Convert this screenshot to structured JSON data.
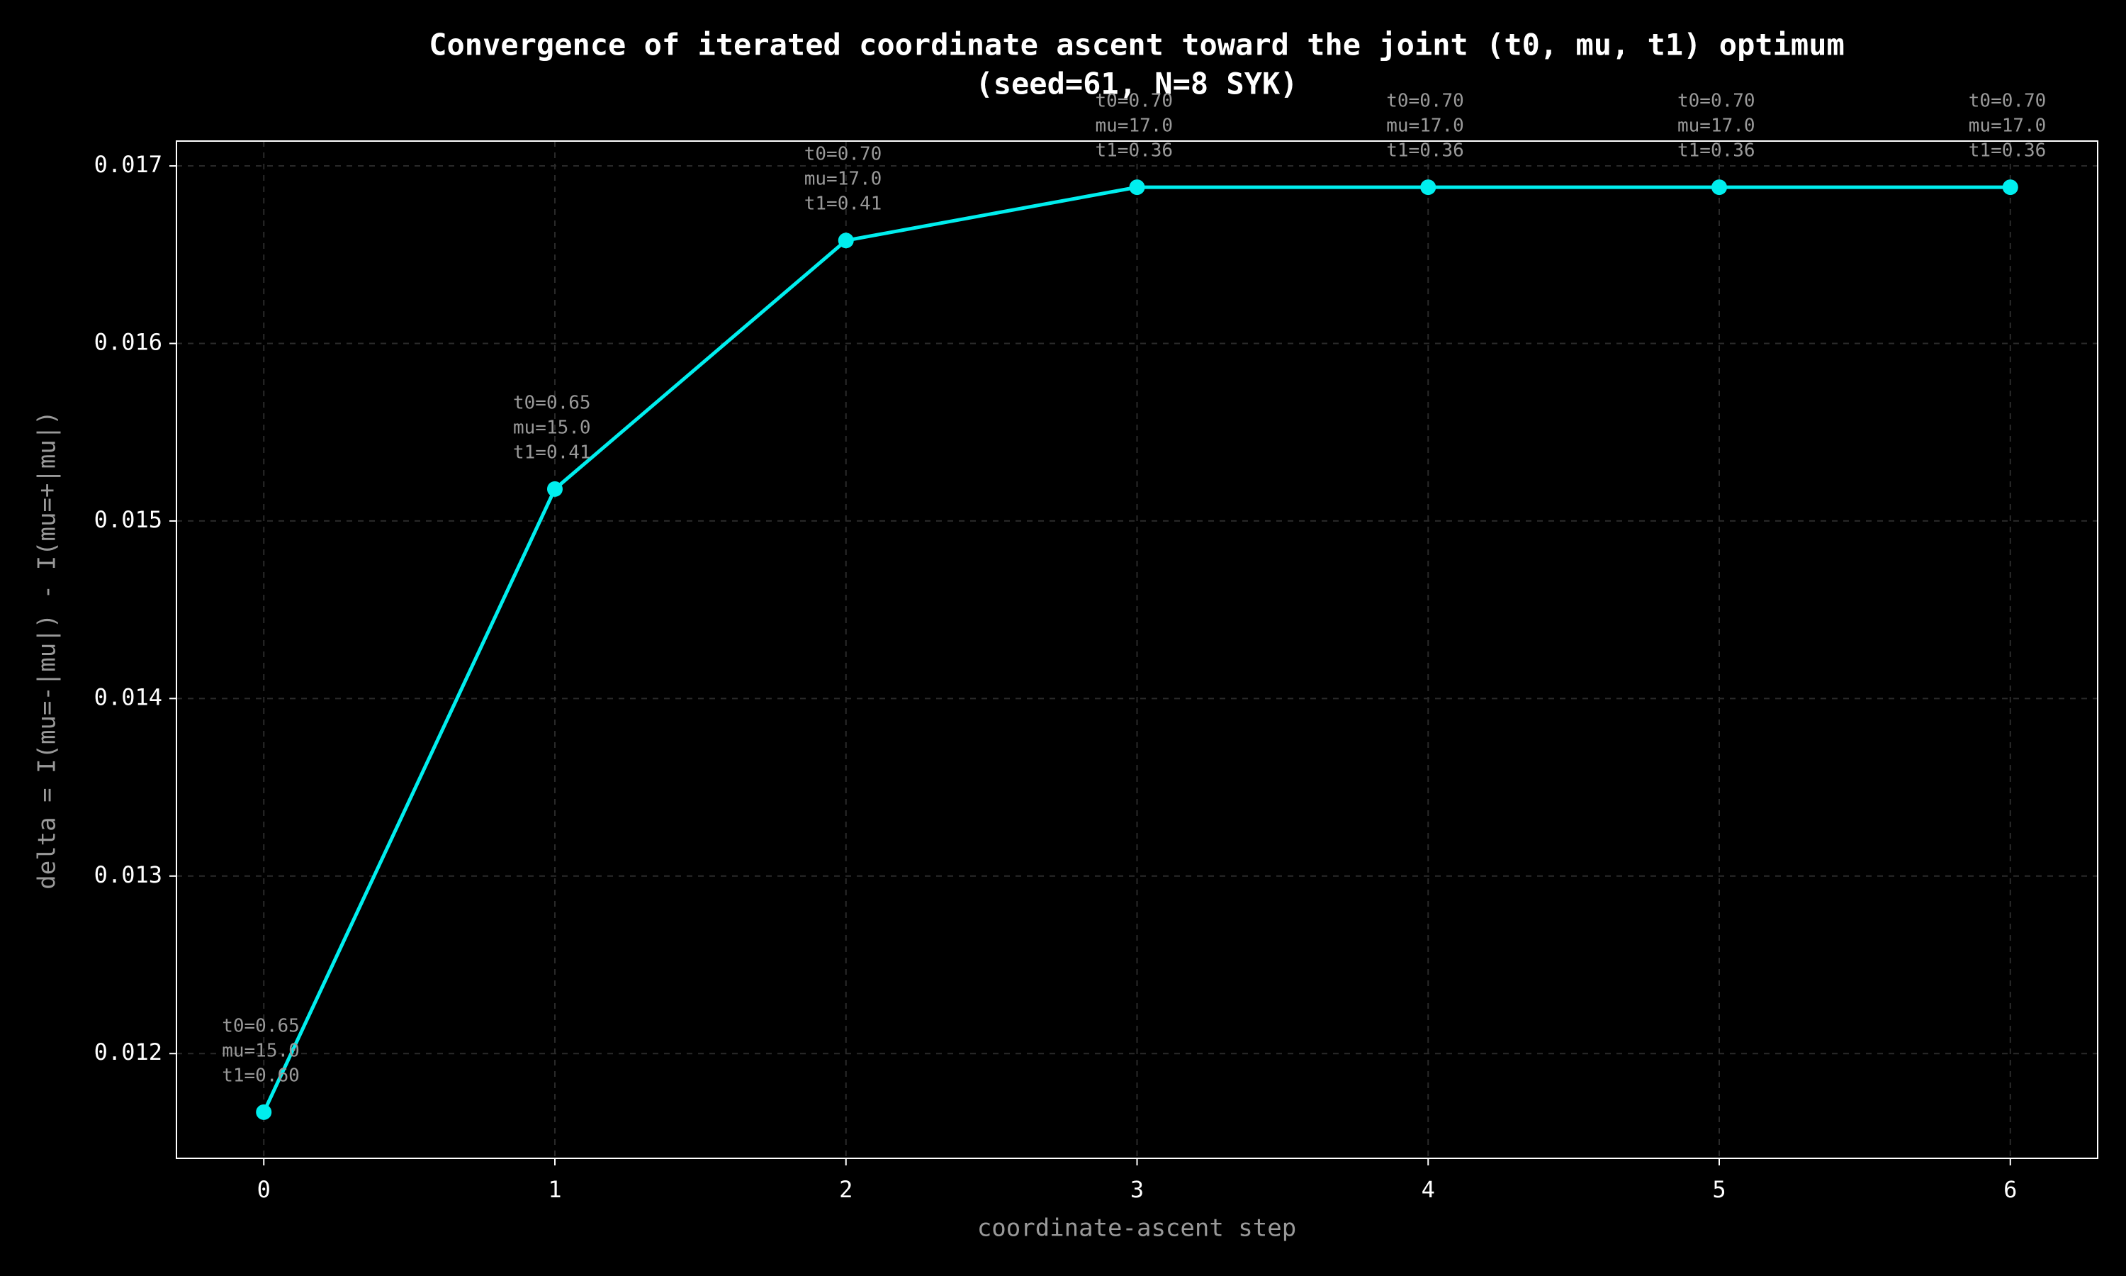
{
  "chart_data": {
    "type": "line",
    "title": [
      "Convergence of iterated coordinate ascent toward the joint (t0, mu, t1) optimum",
      "(seed=61, N=8 SYK)"
    ],
    "xlabel": "coordinate-ascent step",
    "ylabel": "delta = I(mu=-|mu|) - I(mu=+|mu|)",
    "x": [
      0,
      1,
      2,
      3,
      4,
      5,
      6
    ],
    "series": [
      {
        "color": "#00eeee",
        "values": [
          0.01167,
          0.01518,
          0.01658,
          0.01688,
          0.01688,
          0.01688,
          0.01688
        ]
      }
    ],
    "annotations": [
      [
        "t0=0.65",
        "mu=15.0",
        "t1=0.60"
      ],
      [
        "t0=0.65",
        "mu=15.0",
        "t1=0.41"
      ],
      [
        "t0=0.70",
        "mu=17.0",
        "t1=0.41"
      ],
      [
        "t0=0.70",
        "mu=17.0",
        "t1=0.36"
      ],
      [
        "t0=0.70",
        "mu=17.0",
        "t1=0.36"
      ],
      [
        "t0=0.70",
        "mu=17.0",
        "t1=0.36"
      ],
      [
        "t0=0.70",
        "mu=17.0",
        "t1=0.36"
      ]
    ],
    "xlim": [
      -0.3,
      6.3
    ],
    "ylim": [
      0.01141,
      0.01714
    ],
    "xticks": [
      0,
      1,
      2,
      3,
      4,
      5,
      6
    ],
    "yticks": [
      0.012,
      0.013,
      0.014,
      0.015,
      0.016,
      0.017
    ],
    "grid": true
  }
}
